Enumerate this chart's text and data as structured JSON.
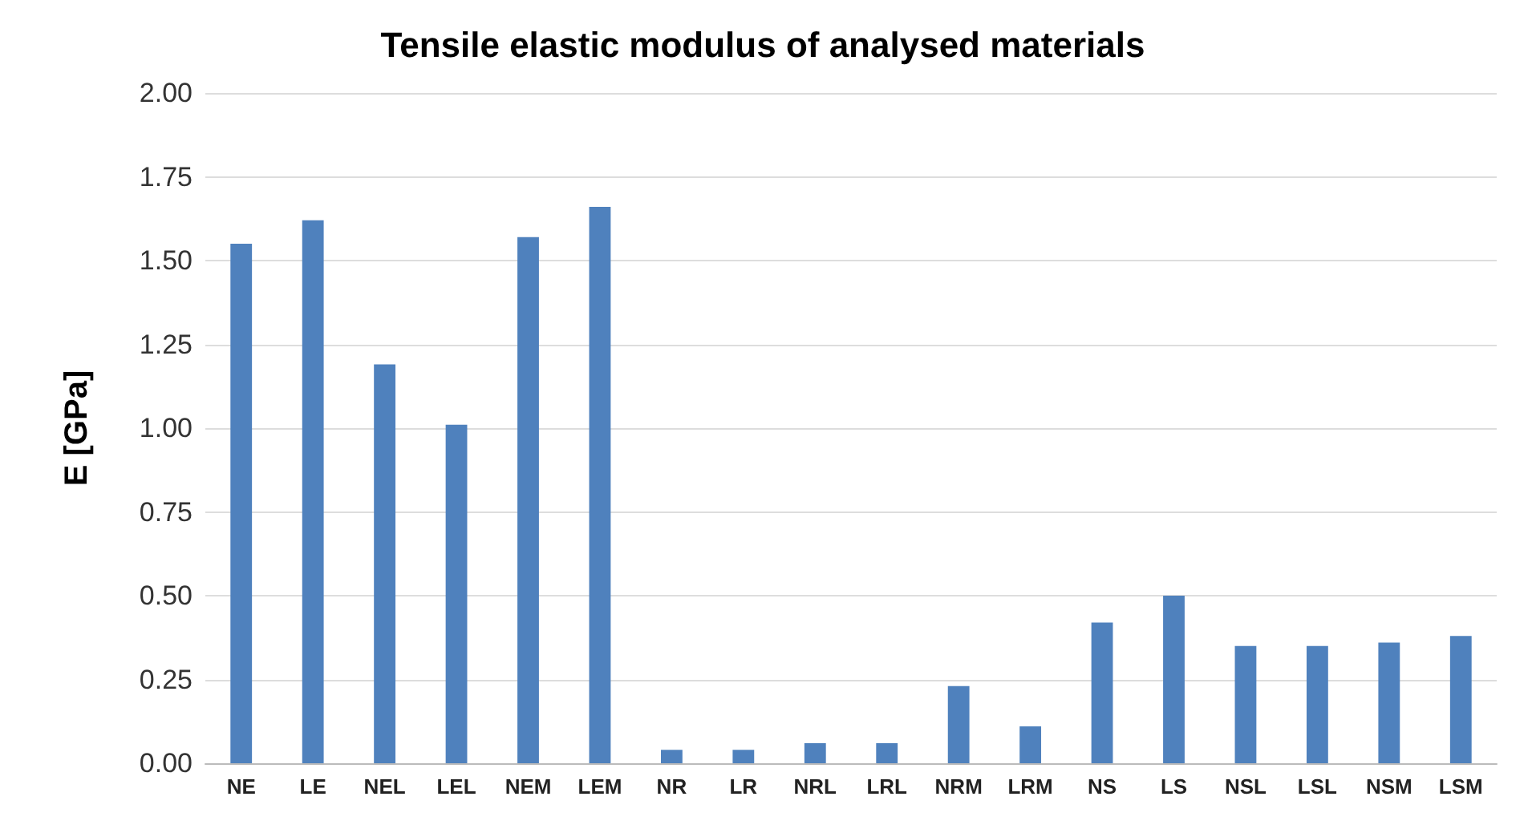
{
  "chart_data": {
    "type": "bar",
    "title": "Tensile elastic modulus of analysed materials",
    "ylabel": "E [GPa]",
    "categories": [
      "NE",
      "LE",
      "NEL",
      "LEL",
      "NEM",
      "LEM",
      "NR",
      "LR",
      "NRL",
      "LRL",
      "NRM",
      "LRM",
      "NS",
      "LS",
      "NSL",
      "LSL",
      "NSM",
      "LSM"
    ],
    "values": [
      1.55,
      1.62,
      1.19,
      1.01,
      1.57,
      1.66,
      0.04,
      0.04,
      0.06,
      0.06,
      0.23,
      0.11,
      0.42,
      0.5,
      0.35,
      0.35,
      0.36,
      0.38
    ],
    "color": "#4f81bd",
    "ylim": [
      0,
      2
    ],
    "yticks": [
      {
        "value": 0,
        "label": "0.00"
      },
      {
        "value": 0.25,
        "label": "0.25"
      },
      {
        "value": 0.5,
        "label": "0.50"
      },
      {
        "value": 0.75,
        "label": "0.75"
      },
      {
        "value": 1,
        "label": "1.00"
      },
      {
        "value": 1.25,
        "label": "1.25"
      },
      {
        "value": 1.5,
        "label": "1.50"
      },
      {
        "value": 1.75,
        "label": "1.75"
      },
      {
        "value": 2,
        "label": "2.00"
      }
    ],
    "grid": true
  }
}
